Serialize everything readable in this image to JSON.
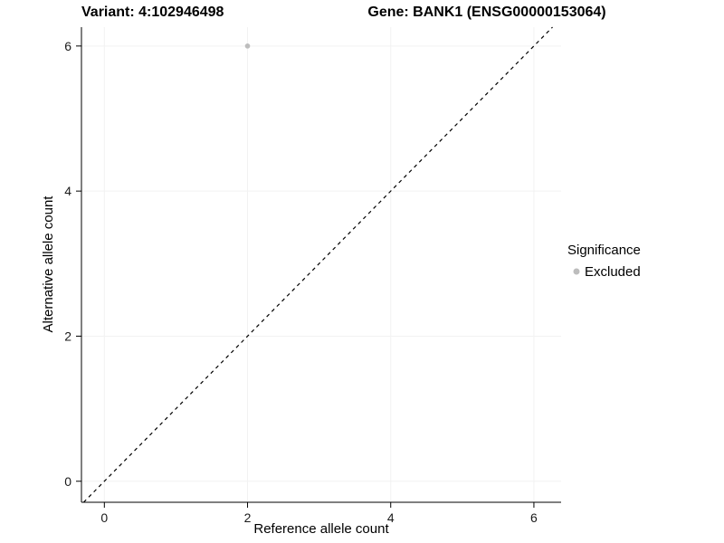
{
  "chart_data": {
    "type": "scatter",
    "titles": {
      "variant": "Variant: 4:102946498",
      "gene": "Gene: BANK1 (ENSG00000153064)"
    },
    "xlabel": "Reference allele count",
    "ylabel": "Alternative allele count",
    "xlim": [
      -0.32,
      6.38
    ],
    "ylim": [
      -0.29,
      6.26
    ],
    "xticks": [
      0,
      2,
      4,
      6
    ],
    "yticks": [
      0,
      2,
      4,
      6
    ],
    "grid": true,
    "points": [
      {
        "x": 2,
        "y": 6,
        "series": "Excluded"
      }
    ],
    "reference_line": {
      "kind": "identity",
      "style": "dashed",
      "color": "#000000"
    },
    "legend": {
      "title": "Significance",
      "position": "right",
      "entries": [
        {
          "label": "Excluded",
          "color": "#bdbdbd"
        }
      ]
    },
    "colors": {
      "point": "#bdbdbd",
      "grid": "#f2f2f2",
      "axis": "#000000",
      "background": "#ffffff"
    }
  }
}
